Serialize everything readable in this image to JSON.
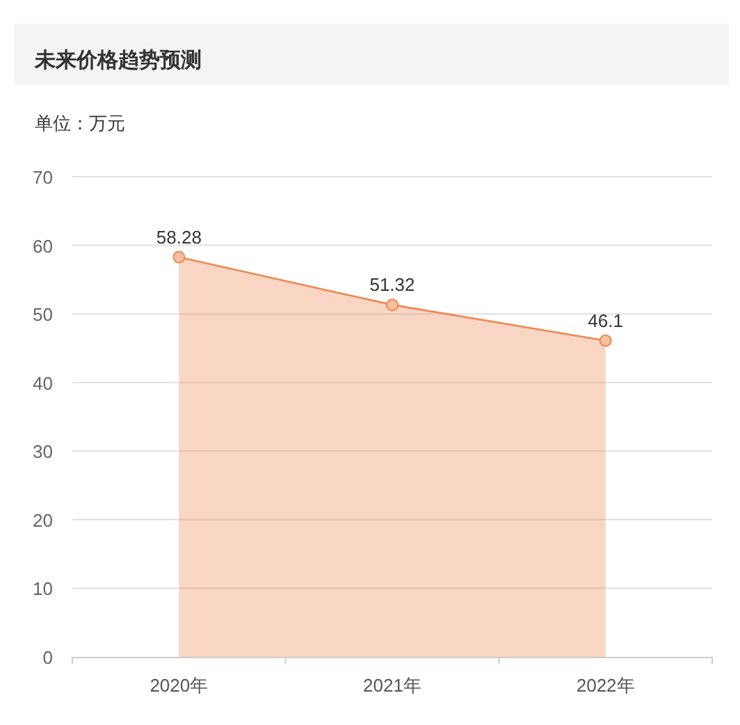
{
  "chart_data": {
    "type": "area",
    "title": "未来价格趋势预测",
    "ylabel": "单位：万元",
    "categories": [
      "2020年",
      "2021年",
      "2022年"
    ],
    "series": [
      {
        "color": "#ec8a52",
        "values": [
          58.28,
          51.32,
          46.1
        ]
      }
    ],
    "ylim": [
      0,
      70
    ],
    "yticks": [
      0,
      10,
      20,
      30,
      40,
      50,
      60,
      70
    ],
    "grid": "y",
    "marker": "circle",
    "data_labels": true
  }
}
